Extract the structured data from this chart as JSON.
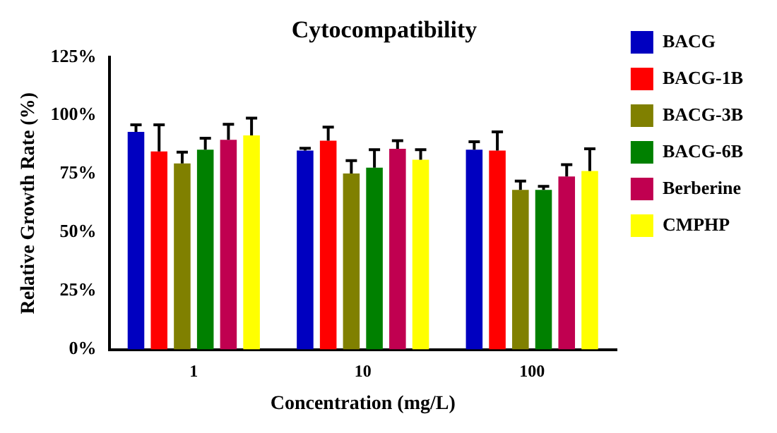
{
  "chart_data": {
    "type": "bar",
    "title": "Cytocompatibility",
    "xlabel": "Concentration (mg/L)",
    "ylabel": "Relative Growth Rate (%)",
    "categories": [
      "1",
      "10",
      "100"
    ],
    "series": [
      {
        "name": "BACG",
        "color": "#0000c0",
        "values": [
          93,
          85,
          85.4
        ],
        "errors": [
          [
            93,
            96
          ],
          [
            85,
            86
          ],
          [
            85.4,
            88.8
          ]
        ]
      },
      {
        "name": "BACG-1B",
        "color": "#ff0000",
        "values": [
          84.6,
          89.2,
          85
        ],
        "errors": [
          [
            84.6,
            96
          ],
          [
            89.2,
            95
          ],
          [
            85,
            93
          ]
        ]
      },
      {
        "name": "BACG-3B",
        "color": "#808000",
        "values": [
          79.5,
          75.2,
          68.2
        ],
        "errors": [
          [
            79.5,
            84.3
          ],
          [
            75.2,
            80.7
          ],
          [
            68.2,
            72
          ]
        ]
      },
      {
        "name": "BACG-6B",
        "color": "#008000",
        "values": [
          85.4,
          77.7,
          68.2
        ],
        "errors": [
          [
            85.4,
            90.3
          ],
          [
            77.7,
            85.4
          ],
          [
            68.2,
            69.7
          ]
        ]
      },
      {
        "name": "Berberine",
        "color": "#c00050",
        "values": [
          89.6,
          85.8,
          73.9
        ],
        "errors": [
          [
            89.6,
            96.2
          ],
          [
            85.8,
            89.2
          ],
          [
            73.9,
            79
          ]
        ]
      },
      {
        "name": "CMPHP",
        "color": "#ffff00",
        "values": [
          91.5,
          81.1,
          76.3
        ],
        "errors": [
          [
            91.5,
            98.9
          ],
          [
            81.1,
            85.4
          ],
          [
            76.3,
            85.8
          ]
        ]
      }
    ],
    "ylim": [
      0,
      125
    ],
    "yticks": [
      {
        "value": 0,
        "label": "0%"
      },
      {
        "value": 25,
        "label": "25%"
      },
      {
        "value": 50,
        "label": "50%"
      },
      {
        "value": 75,
        "label": "75%"
      },
      {
        "value": 100,
        "label": "100%"
      },
      {
        "value": 125,
        "label": "125%"
      }
    ],
    "grid": false,
    "legend": "right"
  }
}
